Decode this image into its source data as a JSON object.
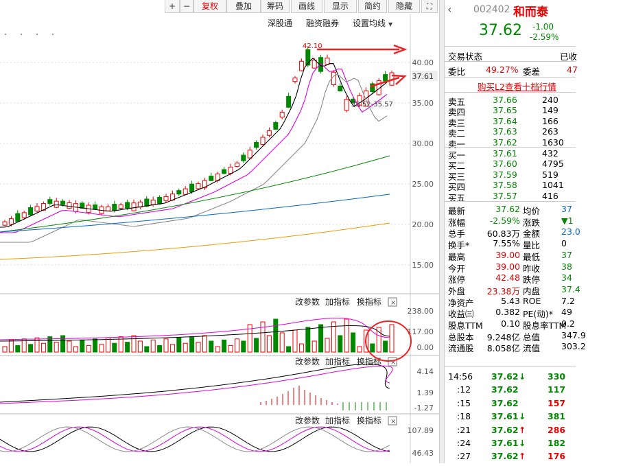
{
  "toolbar": {
    "buttons": [
      "+",
      "−",
      "复权",
      "叠加",
      "筹码",
      "画线",
      "显示",
      "简约",
      "隐藏"
    ]
  },
  "chart": {
    "links": [
      "深股通",
      "融资融券",
      "设置均线"
    ],
    "price_ticks": [
      "40.00",
      "35.00",
      "30.00",
      "25.00",
      "20.00",
      "15.00"
    ],
    "current_price": "37.61",
    "high_label": "42.10",
    "range_label": "33.52-35.57"
  },
  "volume": {
    "controls": [
      "改参数",
      "加指标",
      "换指标"
    ],
    "ticks": [
      "238.00",
      "117.00",
      "0.00"
    ]
  },
  "macd": {
    "controls": [
      "改参数",
      "加指标",
      "换指标"
    ],
    "ticks": [
      "4.14",
      "1.39",
      "-1.27"
    ]
  },
  "kdj": {
    "controls": [
      "改参数",
      "加指标",
      "换指标"
    ],
    "ticks": [
      "107.89",
      "46.43"
    ]
  },
  "quote": {
    "code": "002402",
    "name": "和而泰",
    "price": "37.62",
    "change": "-1.00",
    "change_pct": "-2.59%"
  },
  "status": {
    "label": "交易状态",
    "value": "已收"
  },
  "commission": {
    "ratio_label": "委比",
    "ratio": "49.27%",
    "diff_label": "委差",
    "diff": "47"
  },
  "l2_link": "购买L2查看十档行情",
  "sell": [
    [
      "卖五",
      "37.66",
      "240"
    ],
    [
      "卖四",
      "37.65",
      "149"
    ],
    [
      "卖三",
      "37.64",
      "166"
    ],
    [
      "卖二",
      "37.63",
      "263"
    ],
    [
      "卖一",
      "37.62",
      "1630"
    ]
  ],
  "buy": [
    [
      "买一",
      "37.61",
      "432"
    ],
    [
      "买二",
      "37.60",
      "4795"
    ],
    [
      "买三",
      "37.59",
      "519"
    ],
    [
      "买四",
      "37.58",
      "1041"
    ],
    [
      "买五",
      "37.57",
      "416"
    ]
  ],
  "stats": [
    [
      "最新",
      "37.62",
      "均价",
      "37"
    ],
    [
      "涨幅",
      "-2.59%",
      "涨跌",
      "▼1"
    ],
    [
      "总手",
      "60.83万",
      "金额",
      "23.0"
    ],
    [
      "换手*",
      "7.55%",
      "量比",
      "0"
    ],
    [
      "最高",
      "39.00",
      "最低",
      "37"
    ],
    [
      "今开",
      "39.00",
      "昨收",
      "38"
    ],
    [
      "涨停",
      "42.48",
      "跌停",
      "34"
    ],
    [
      "外盘",
      "23.38万",
      "内盘",
      "37.4"
    ],
    [
      "净资产",
      "5.43",
      "ROE",
      "7.2"
    ],
    [
      "收益㈢",
      "0.382",
      "PE(动)*",
      "49"
    ],
    [
      "股息TTM",
      "0.10",
      "股息率TTM",
      "0.2"
    ],
    [
      "总股本",
      "9.248亿",
      "总值",
      "347.9"
    ],
    [
      "流通股",
      "8.058亿",
      "流值",
      "303.2"
    ]
  ],
  "ticks": [
    {
      "time": "14:56",
      "price": "37.62",
      "dir": "↓",
      "volume": "330"
    },
    {
      "time": ":12",
      "price": "37.62",
      "volume": "117"
    },
    {
      "time": ":15",
      "price": "37.62",
      "volume": "157"
    },
    {
      "time": ":18",
      "price": "37.61",
      "dir": "↓",
      "volume": "381"
    },
    {
      "time": ":21",
      "price": "37.62",
      "dir": "↑",
      "volume": "286"
    },
    {
      "time": ":24",
      "price": "37.61",
      "dir": "↓",
      "volume": "182"
    },
    {
      "time": ":27",
      "price": "37.62",
      "dir": "↑",
      "volume": "176"
    }
  ]
}
